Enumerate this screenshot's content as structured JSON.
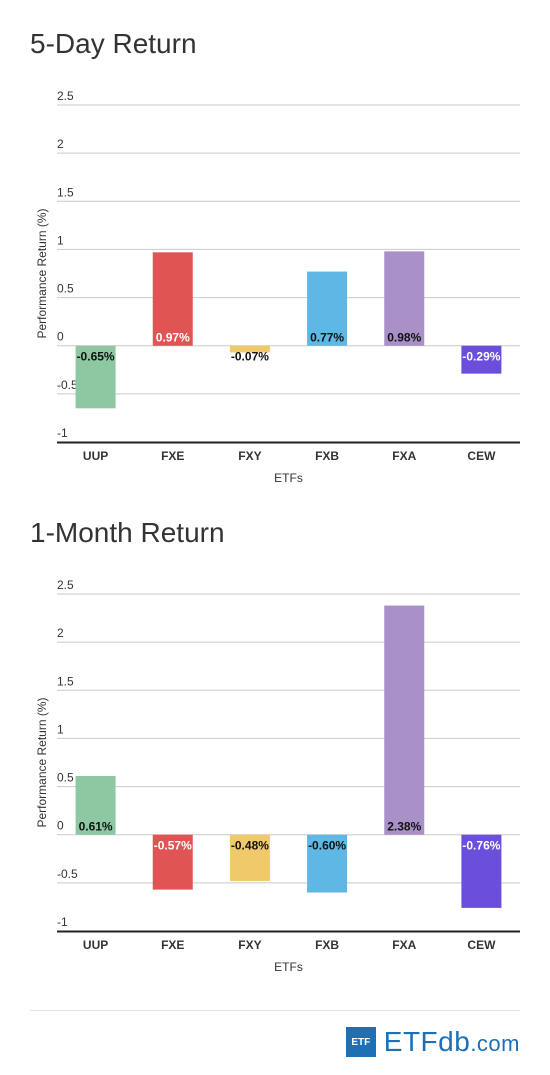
{
  "chart_data": [
    {
      "type": "bar",
      "title": "5-Day Return",
      "xlabel": "ETFs",
      "ylabel": "Performance Return (%)",
      "ylim": [
        -1,
        2.5
      ],
      "yticks": [
        "2.5",
        "2",
        "1.5",
        "1",
        "0.5",
        "0",
        "-0.5",
        "-1"
      ],
      "ytick_values": [
        2.5,
        2,
        1.5,
        1,
        0.5,
        0,
        -0.5,
        -1
      ],
      "categories": [
        "UUP",
        "FXE",
        "FXY",
        "FXB",
        "FXA",
        "CEW"
      ],
      "values": [
        -0.65,
        0.97,
        -0.07,
        0.77,
        0.98,
        -0.29
      ],
      "labels": [
        "-0.65%",
        "0.97%",
        "-0.07%",
        "0.77%",
        "0.98%",
        "-0.29%"
      ],
      "grid": true,
      "legend": "none"
    },
    {
      "type": "bar",
      "title": "1-Month Return",
      "xlabel": "ETFs",
      "ylabel": "Performance Return (%)",
      "ylim": [
        -1,
        2.5
      ],
      "yticks": [
        "2.5",
        "2",
        "1.5",
        "1",
        "0.5",
        "0",
        "-0.5",
        "-1"
      ],
      "ytick_values": [
        2.5,
        2,
        1.5,
        1,
        0.5,
        0,
        -0.5,
        -1
      ],
      "categories": [
        "UUP",
        "FXE",
        "FXY",
        "FXB",
        "FXA",
        "CEW"
      ],
      "values": [
        0.61,
        -0.57,
        -0.48,
        -0.6,
        2.38,
        -0.76
      ],
      "labels": [
        "0.61%",
        "-0.57%",
        "-0.48%",
        "-0.60%",
        "2.38%",
        "-0.76%"
      ],
      "grid": true,
      "legend": "none"
    }
  ],
  "colors": [
    "#8dc8a3",
    "#e05454",
    "#f0c96b",
    "#5fb7e5",
    "#a990c9",
    "#6b4fdc"
  ],
  "label_colors": [
    "#111111",
    "#ffffff",
    "#111111",
    "#111111",
    "#111111",
    "#ffffff"
  ],
  "footer": {
    "logo_box": "ETF",
    "logo_main": "ETF",
    "logo_db": "db",
    "logo_com": ".com"
  }
}
